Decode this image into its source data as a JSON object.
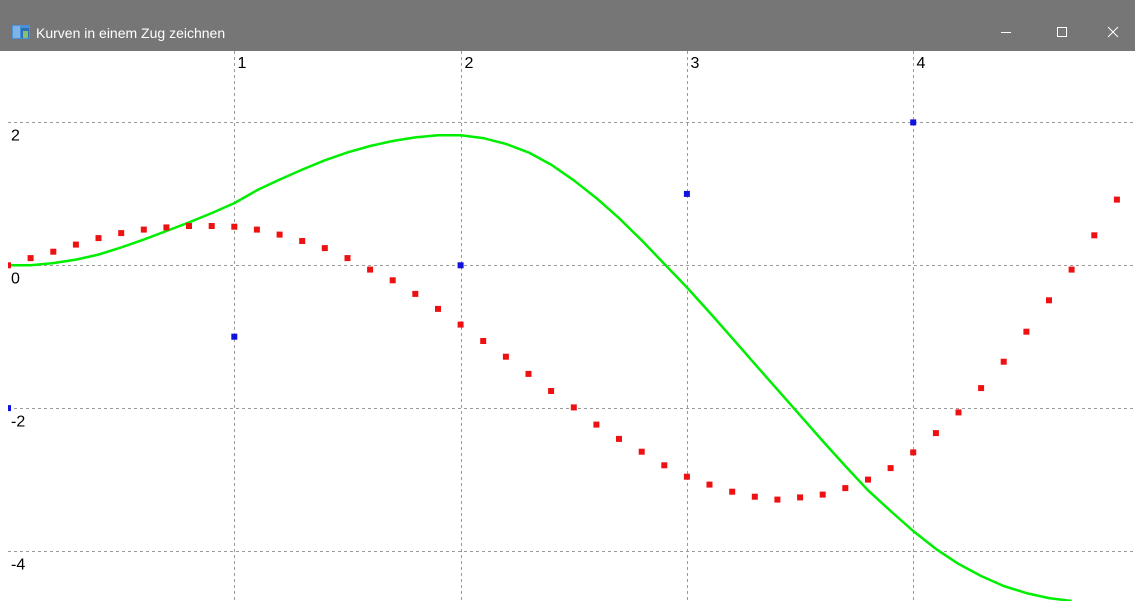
{
  "window": {
    "title": "Kurven in einem Zug zeichnen",
    "controls": {
      "minimize_icon": "minimize-icon",
      "maximize_icon": "maximize-icon",
      "close_icon": "close-icon"
    }
  },
  "chart_data": {
    "type": "line",
    "title": "",
    "xlabel": "",
    "ylabel": "",
    "xlim": [
      0.0,
      4.98
    ],
    "ylim": [
      -4.7,
      3.0
    ],
    "xticks": [
      1,
      2,
      3,
      4
    ],
    "yticks": [
      2,
      0,
      -2,
      -4
    ],
    "grid": true,
    "colors": {
      "green": "#00ee00",
      "red": "#ee1111",
      "blue": "#1111dd",
      "grid": "#9a9a9a"
    },
    "series": [
      {
        "style": "line",
        "color": "#00ee00",
        "x": [
          0.0,
          0.1,
          0.2,
          0.3,
          0.4,
          0.5,
          0.6,
          0.7,
          0.8,
          0.9,
          1.0,
          1.1,
          1.2,
          1.3,
          1.4,
          1.5,
          1.6,
          1.7,
          1.8,
          1.9,
          2.0,
          2.1,
          2.2,
          2.3,
          2.4,
          2.5,
          2.6,
          2.7,
          2.8,
          2.9,
          3.0,
          3.1,
          3.2,
          3.3,
          3.4,
          3.5,
          3.6,
          3.7,
          3.8,
          3.9,
          4.0,
          4.1,
          4.2,
          4.3,
          4.4,
          4.5,
          4.6,
          4.7
        ],
        "y": [
          0.0,
          0.0,
          0.03,
          0.08,
          0.15,
          0.25,
          0.36,
          0.48,
          0.6,
          0.73,
          0.87,
          1.05,
          1.2,
          1.34,
          1.47,
          1.58,
          1.67,
          1.74,
          1.79,
          1.82,
          1.82,
          1.78,
          1.7,
          1.58,
          1.41,
          1.19,
          0.94,
          0.66,
          0.35,
          0.02,
          -0.31,
          -0.66,
          -1.02,
          -1.38,
          -1.74,
          -2.1,
          -2.46,
          -2.81,
          -3.15,
          -3.44,
          -3.72,
          -3.97,
          -4.18,
          -4.35,
          -4.49,
          -4.59,
          -4.66,
          -4.7
        ]
      },
      {
        "style": "markers",
        "color": "#ee1111",
        "x": [
          0.0,
          0.1,
          0.2,
          0.3,
          0.4,
          0.5,
          0.6,
          0.7,
          0.8,
          0.9,
          1.0,
          1.1,
          1.2,
          1.3,
          1.4,
          1.5,
          1.6,
          1.7,
          1.8,
          1.9,
          2.0,
          2.1,
          2.2,
          2.3,
          2.4,
          2.5,
          2.6,
          2.7,
          2.8,
          2.9,
          3.0,
          3.1,
          3.2,
          3.3,
          3.4,
          3.5,
          3.6,
          3.7,
          3.8,
          3.9,
          4.0,
          4.1,
          4.2,
          4.3,
          4.4,
          4.5,
          4.6,
          4.7,
          4.8,
          4.9
        ],
        "y": [
          0.0,
          0.1,
          0.19,
          0.29,
          0.38,
          0.45,
          0.5,
          0.53,
          0.55,
          0.55,
          0.54,
          0.5,
          0.43,
          0.34,
          0.24,
          0.1,
          -0.06,
          -0.21,
          -0.4,
          -0.61,
          -0.83,
          -1.06,
          -1.28,
          -1.52,
          -1.76,
          -1.99,
          -2.23,
          -2.43,
          -2.61,
          -2.8,
          -2.96,
          -3.07,
          -3.17,
          -3.24,
          -3.28,
          -3.25,
          -3.21,
          -3.12,
          -3.0,
          -2.84,
          -2.62,
          -2.35,
          -2.06,
          -1.72,
          -1.35,
          -0.93,
          -0.49,
          -0.06,
          0.42,
          0.92
        ]
      },
      {
        "style": "markers",
        "color": "#1111dd",
        "x": [
          0,
          1,
          2,
          3,
          4
        ],
        "y": [
          -2,
          -1,
          0,
          1,
          2
        ]
      }
    ]
  }
}
